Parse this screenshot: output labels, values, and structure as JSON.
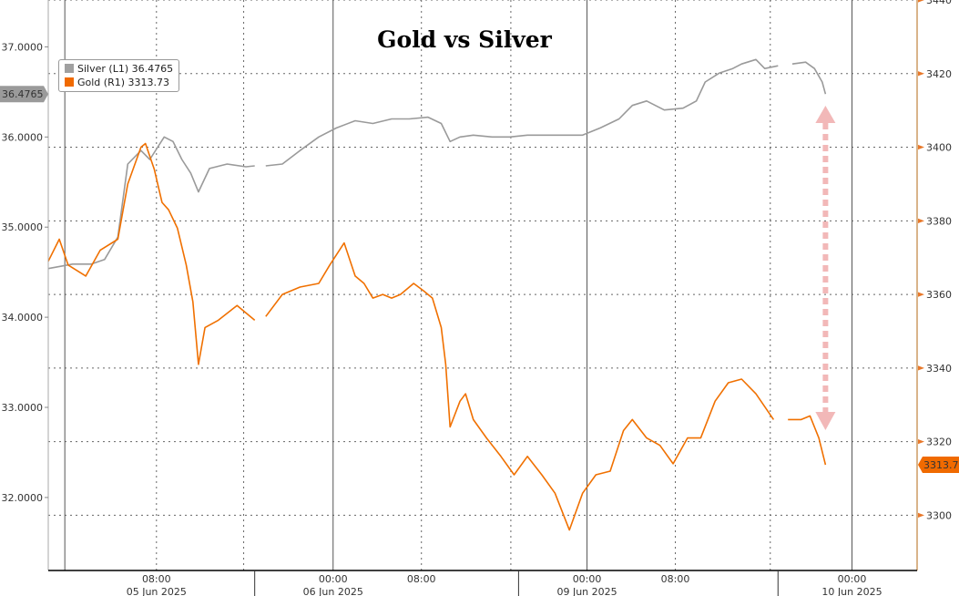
{
  "chart_data": {
    "type": "line",
    "title": "Gold vs Silver",
    "x_unit": "session hours relative to 06 Jun 2025 00:00 (weekend compressed)",
    "xlim": [
      -25.8,
      52.9
    ],
    "x_ticks": [
      {
        "x": -16,
        "time": "08:00",
        "date": "05 Jun 2025"
      },
      {
        "x": 0,
        "time": "00:00",
        "date": "06 Jun 2025"
      },
      {
        "x": 8,
        "time": "08:00",
        "date": ""
      },
      {
        "x": 23,
        "time": "00:00",
        "date": "09 Jun 2025"
      },
      {
        "x": 31,
        "time": "08:00",
        "date": ""
      },
      {
        "x": 47,
        "time": "00:00",
        "date": "10 Jun 2025"
      }
    ],
    "left_axis": {
      "ylim": [
        31.19,
        37.52
      ],
      "ticks": [
        "32.0000",
        "33.0000",
        "34.0000",
        "35.0000",
        "36.0000",
        "37.0000"
      ],
      "last_label": "36.4765"
    },
    "right_axis": {
      "ylim": [
        3285,
        3440
      ],
      "ticks": [
        "3300",
        "3320",
        "3340",
        "3360",
        "3380",
        "3400",
        "3420",
        "3440"
      ],
      "last_label": "3313.73"
    },
    "legend": [
      {
        "name": "Silver",
        "axis": "(L1)",
        "value": "36.4765",
        "color": "#a0a0a0"
      },
      {
        "name": "Gold",
        "axis": "(R1)",
        "value": "3313.73",
        "color": "#f06a00"
      }
    ],
    "series": [
      {
        "name": "Silver",
        "axis": "left",
        "color": "#9a9a9a",
        "points": [
          [
            -25.8,
            34.54
          ],
          [
            -23.6,
            34.59
          ],
          [
            -21.9,
            34.59
          ],
          [
            -20.7,
            34.64
          ],
          [
            -19.5,
            34.89
          ],
          [
            -18.6,
            35.7
          ],
          [
            -17.4,
            35.85
          ],
          [
            -16.6,
            35.75
          ],
          [
            -15.3,
            36.0
          ],
          [
            -14.5,
            35.95
          ],
          [
            -13.7,
            35.75
          ],
          [
            -12.9,
            35.6
          ],
          [
            -12.2,
            35.39
          ],
          [
            -11.2,
            35.65
          ],
          [
            -9.6,
            35.7
          ],
          [
            -7.9,
            35.67
          ],
          [
            -7.1,
            35.68
          ],
          null,
          [
            -6.1,
            35.68
          ],
          [
            -4.6,
            35.7
          ],
          [
            -3,
            35.85
          ],
          [
            -1.3,
            36.0
          ],
          [
            0.3,
            36.1
          ],
          [
            2,
            36.18
          ],
          [
            3.6,
            36.15
          ],
          [
            5.3,
            36.2
          ],
          [
            6.9,
            36.2
          ],
          [
            8.6,
            36.22
          ],
          [
            9.8,
            36.15
          ],
          [
            10.6,
            35.95
          ],
          [
            11.5,
            36.0
          ],
          [
            12.7,
            36.02
          ],
          [
            14.4,
            36.0
          ],
          [
            16,
            36.0
          ],
          [
            17.6,
            36.02
          ],
          [
            19.3,
            36.02
          ],
          [
            20.9,
            36.02
          ],
          [
            22.6,
            36.02
          ],
          [
            24.2,
            36.1
          ],
          [
            25.9,
            36.2
          ],
          [
            27.1,
            36.35
          ],
          [
            28.4,
            36.4
          ],
          [
            30,
            36.3
          ],
          [
            31.7,
            36.32
          ],
          [
            32.9,
            36.4
          ],
          [
            33.7,
            36.61
          ],
          [
            35,
            36.71
          ],
          [
            36.2,
            36.76
          ],
          [
            37,
            36.81
          ],
          [
            38.3,
            36.86
          ],
          [
            39.1,
            36.76
          ],
          [
            40.3,
            36.79
          ],
          null,
          [
            41.6,
            36.81
          ],
          [
            42.8,
            36.83
          ],
          [
            43.6,
            36.76
          ],
          [
            44.3,
            36.61
          ],
          [
            44.6,
            36.4765
          ]
        ]
      },
      {
        "name": "Gold",
        "axis": "right",
        "color": "#f07000",
        "points": [
          [
            -25.8,
            3369
          ],
          [
            -24.8,
            3375
          ],
          [
            -24,
            3368
          ],
          [
            -22.4,
            3365
          ],
          [
            -21.1,
            3372
          ],
          [
            -19.5,
            3375
          ],
          [
            -18.6,
            3390
          ],
          [
            -17.4,
            3400
          ],
          [
            -17,
            3401
          ],
          [
            -16.2,
            3394
          ],
          [
            -15.5,
            3385
          ],
          [
            -14.9,
            3383
          ],
          [
            -14.1,
            3378
          ],
          [
            -13.3,
            3368
          ],
          [
            -12.7,
            3358
          ],
          [
            -12.2,
            3341
          ],
          [
            -11.6,
            3351
          ],
          [
            -10.4,
            3353
          ],
          [
            -8.7,
            3357
          ],
          [
            -7.1,
            3353
          ],
          null,
          [
            -6.1,
            3354
          ],
          [
            -4.6,
            3360
          ],
          [
            -3,
            3362
          ],
          [
            -1.3,
            3363
          ],
          [
            -0.3,
            3368
          ],
          [
            1,
            3374
          ],
          [
            2,
            3365
          ],
          [
            2.8,
            3363
          ],
          [
            3.6,
            3359
          ],
          [
            4.5,
            3360
          ],
          [
            5.3,
            3359
          ],
          [
            6.1,
            3360
          ],
          [
            7.3,
            3363
          ],
          [
            8.2,
            3361
          ],
          [
            9,
            3359
          ],
          [
            9.8,
            3351
          ],
          [
            10.2,
            3341
          ],
          [
            10.6,
            3324
          ],
          [
            11.5,
            3331
          ],
          [
            12,
            3333
          ],
          [
            12.7,
            3326
          ],
          [
            13.9,
            3321
          ],
          [
            15.2,
            3316
          ],
          [
            16.4,
            3311
          ],
          [
            17.6,
            3316
          ],
          [
            18.9,
            3311
          ],
          [
            20.1,
            3306
          ],
          [
            21.4,
            3296
          ],
          [
            22.6,
            3306
          ],
          [
            23.8,
            3311
          ],
          [
            25.1,
            3312
          ],
          [
            26.3,
            3323
          ],
          [
            27.1,
            3326
          ],
          [
            28.4,
            3321
          ],
          [
            29.6,
            3319
          ],
          [
            30.8,
            3314
          ],
          [
            32.1,
            3321
          ],
          [
            33.3,
            3321
          ],
          [
            34.6,
            3331
          ],
          [
            35.8,
            3336
          ],
          [
            37,
            3337
          ],
          [
            38.3,
            3333
          ],
          [
            39.9,
            3326
          ],
          null,
          [
            41.2,
            3326
          ],
          [
            42.4,
            3326
          ],
          [
            43.2,
            3327
          ],
          [
            44,
            3321
          ],
          [
            44.6,
            3313.73
          ]
        ]
      }
    ]
  }
}
